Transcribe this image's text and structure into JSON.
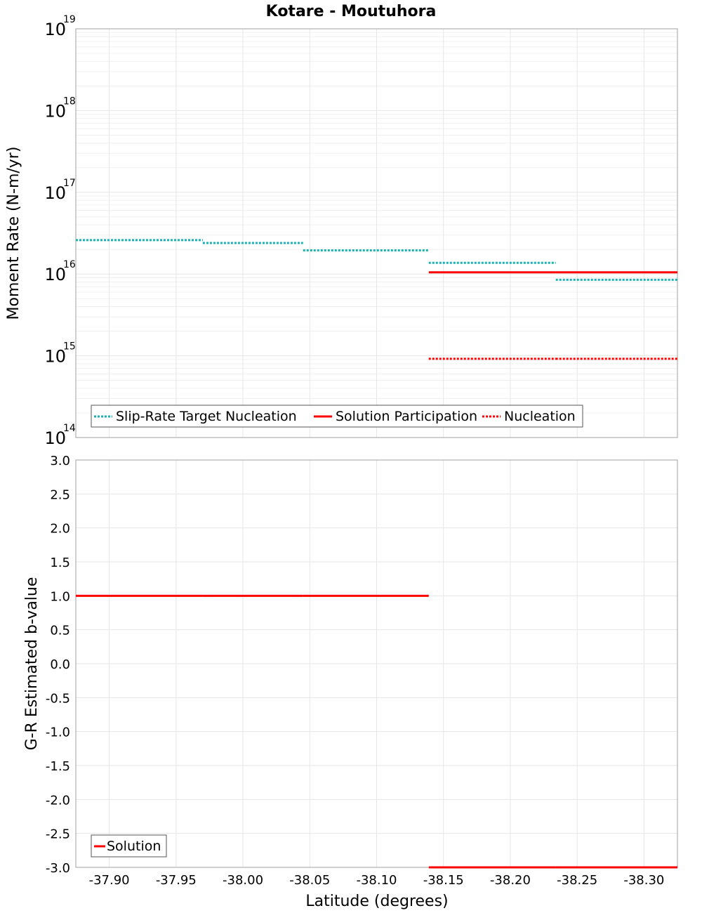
{
  "title": "Kotare - Moutuhora",
  "colors": {
    "target": "#1ab2b2",
    "solution": "#ff0000"
  },
  "x_axis": {
    "label": "Latitude (degrees)",
    "range": [
      -37.875,
      -38.325
    ],
    "ticks": [
      -37.9,
      -37.95,
      -38.0,
      -38.05,
      -38.1,
      -38.15,
      -38.2,
      -38.25,
      -38.3
    ],
    "tick_labels": [
      "-37.90",
      "-37.95",
      "-38.00",
      "-38.05",
      "-38.10",
      "-38.15",
      "-38.20",
      "-38.25",
      "-38.30"
    ]
  },
  "chart_data": [
    {
      "type": "line",
      "panel": "top",
      "ylabel": "Moment Rate (N-m/yr)",
      "yscale": "log",
      "ylim": [
        100000000000000.0,
        1e+19
      ],
      "y_ticks": [
        {
          "value": 1e+19,
          "base": "10",
          "exp": "19"
        },
        {
          "value": 1e+18,
          "base": "10",
          "exp": "18"
        },
        {
          "value": 1e+17,
          "base": "10",
          "exp": "17"
        },
        {
          "value": 1e+16,
          "base": "10",
          "exp": "16"
        },
        {
          "value": 1000000000000000.0,
          "base": "10",
          "exp": "15"
        },
        {
          "value": 100000000000000.0,
          "base": "10",
          "exp": "14"
        }
      ],
      "series": [
        {
          "name": "Slip-Rate Target Nucleation",
          "color": "#1ab2b2",
          "style": "dotted",
          "segments": [
            {
              "x0": -37.875,
              "x1": -37.97,
              "y": 2.6e+16
            },
            {
              "x0": -37.97,
              "x1": -38.045,
              "y": 2.4e+16
            },
            {
              "x0": -38.045,
              "x1": -38.139,
              "y": 1.95e+16
            },
            {
              "x0": -38.139,
              "x1": -38.234,
              "y": 1.37e+16
            },
            {
              "x0": -38.234,
              "x1": -38.325,
              "y": 8500000000000000.0
            }
          ]
        },
        {
          "name": "Solution Participation",
          "color": "#ff0000",
          "style": "solid",
          "segments": [
            {
              "x0": -38.139,
              "x1": -38.234,
              "y": 1.05e+16
            },
            {
              "x0": -38.234,
              "x1": -38.325,
              "y": 1.05e+16
            }
          ]
        },
        {
          "name": "Nucleation",
          "color": "#ff0000",
          "style": "dotted",
          "segments": [
            {
              "x0": -38.139,
              "x1": -38.234,
              "y": 920000000000000.0
            },
            {
              "x0": -38.234,
              "x1": -38.325,
              "y": 920000000000000.0
            }
          ]
        }
      ],
      "legend": {
        "placement": "bottom-left",
        "entries": [
          {
            "label": "Slip-Rate Target Nucleation",
            "color": "#1ab2b2",
            "style": "dotted"
          },
          {
            "label": "Solution Participation",
            "color": "#ff0000",
            "style": "solid"
          },
          {
            "label": "Nucleation",
            "color": "#ff0000",
            "style": "dotted"
          }
        ]
      }
    },
    {
      "type": "line",
      "panel": "bottom",
      "ylabel": "G-R Estimated b-value",
      "yscale": "linear",
      "ylim": [
        -3.0,
        3.0
      ],
      "y_ticks": [
        3.0,
        2.5,
        2.0,
        1.5,
        1.0,
        0.5,
        0.0,
        -0.5,
        -1.0,
        -1.5,
        -2.0,
        -2.5,
        -3.0
      ],
      "y_tick_labels": [
        "3.0",
        "2.5",
        "2.0",
        "1.5",
        "1.0",
        "0.5",
        "0.0",
        "-0.5",
        "-1.0",
        "-1.5",
        "-2.0",
        "-2.5",
        "-3.0"
      ],
      "series": [
        {
          "name": "Solution",
          "color": "#ff0000",
          "style": "solid",
          "segments": [
            {
              "x0": -37.875,
              "x1": -37.97,
              "y": 1.0
            },
            {
              "x0": -37.97,
              "x1": -38.045,
              "y": 1.0
            },
            {
              "x0": -38.045,
              "x1": -38.139,
              "y": 1.0
            },
            {
              "x0": -38.139,
              "x1": -38.234,
              "y": -3.0
            },
            {
              "x0": -38.234,
              "x1": -38.325,
              "y": -3.0
            }
          ]
        }
      ],
      "legend": {
        "placement": "bottom-left",
        "entries": [
          {
            "label": "Solution",
            "color": "#ff0000",
            "style": "solid"
          }
        ]
      }
    }
  ]
}
